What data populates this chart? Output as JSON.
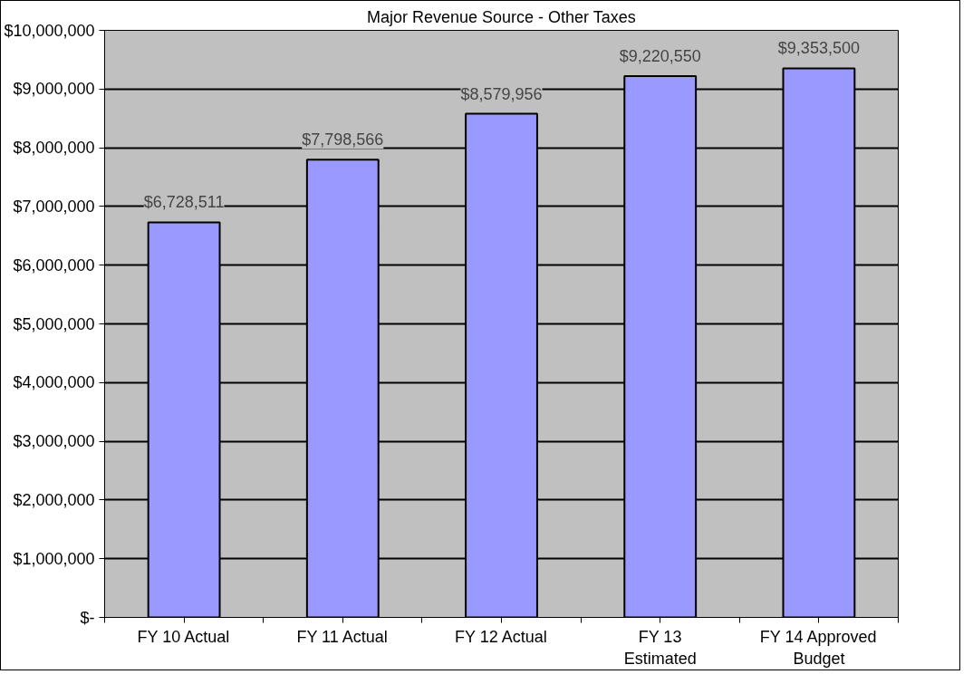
{
  "chart_data": {
    "type": "bar",
    "title": "Major Revenue Source - Other Taxes",
    "categories": [
      "FY 10 Actual",
      "FY 11 Actual",
      "FY 12 Actual",
      "FY 13 Estimated",
      "FY 14 Approved Budget"
    ],
    "values": [
      6728511,
      7798566,
      8579956,
      9220550,
      9353500
    ],
    "value_labels": [
      "$6,728,511",
      "$7,798,566",
      "$8,579,956",
      "$9,220,550",
      "$9,353,500"
    ],
    "color": "#9999ff",
    "ylim": [
      0,
      10000000
    ],
    "yticks": [
      {
        "value": 0,
        "label": "$-"
      },
      {
        "value": 1000000,
        "label": "$1,000,000"
      },
      {
        "value": 2000000,
        "label": "$2,000,000"
      },
      {
        "value": 3000000,
        "label": "$3,000,000"
      },
      {
        "value": 4000000,
        "label": "$4,000,000"
      },
      {
        "value": 5000000,
        "label": "$5,000,000"
      },
      {
        "value": 6000000,
        "label": "$6,000,000"
      },
      {
        "value": 7000000,
        "label": "$7,000,000"
      },
      {
        "value": 8000000,
        "label": "$8,000,000"
      },
      {
        "value": 9000000,
        "label": "$9,000,000"
      },
      {
        "value": 10000000,
        "label": "$10,000,000"
      }
    ],
    "grid": "y"
  }
}
